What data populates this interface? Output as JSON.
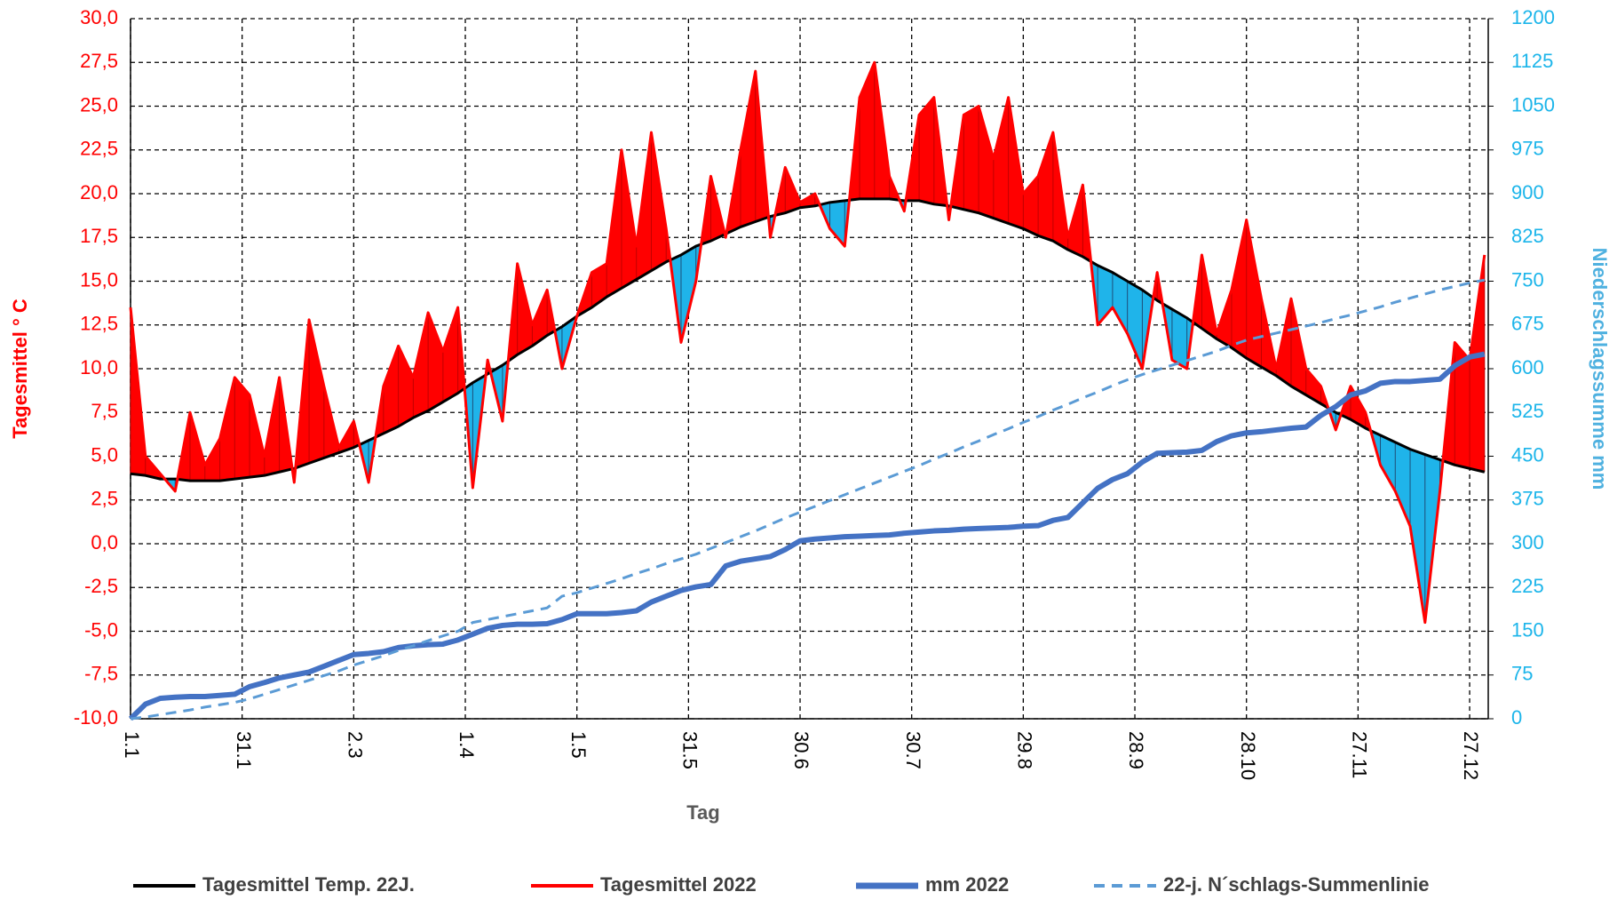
{
  "chart_data": {
    "type": "line",
    "x_label": "Tag",
    "y_label": "Tagesmittel ° C",
    "y2_label": "Niederschlagssumme mm",
    "x": [
      1,
      5,
      9,
      13,
      17,
      21,
      25,
      29,
      33,
      37,
      41,
      45,
      49,
      53,
      57,
      61,
      65,
      69,
      73,
      77,
      81,
      85,
      89,
      93,
      97,
      101,
      105,
      109,
      113,
      117,
      121,
      125,
      129,
      133,
      137,
      141,
      145,
      149,
      153,
      157,
      161,
      165,
      169,
      173,
      177,
      181,
      185,
      189,
      193,
      197,
      201,
      205,
      209,
      213,
      217,
      221,
      225,
      229,
      233,
      237,
      241,
      245,
      249,
      253,
      257,
      261,
      265,
      269,
      273,
      277,
      281,
      285,
      289,
      293,
      297,
      301,
      305,
      309,
      313,
      317,
      321,
      325,
      329,
      333,
      337,
      341,
      345,
      349,
      353,
      357,
      361,
      365
    ],
    "series": [
      {
        "name": "Tagesmittel Temp. 22J.",
        "color": "#000000",
        "values": [
          4.0,
          3.9,
          3.7,
          3.7,
          3.6,
          3.6,
          3.6,
          3.7,
          3.8,
          3.9,
          4.1,
          4.3,
          4.6,
          4.9,
          5.2,
          5.5,
          5.9,
          6.3,
          6.7,
          7.2,
          7.6,
          8.1,
          8.6,
          9.2,
          9.7,
          10.2,
          10.8,
          11.3,
          11.9,
          12.4,
          13.0,
          13.5,
          14.1,
          14.6,
          15.1,
          15.6,
          16.1,
          16.5,
          17.0,
          17.3,
          17.7,
          18.1,
          18.4,
          18.7,
          18.9,
          19.2,
          19.3,
          19.5,
          19.6,
          19.7,
          19.7,
          19.7,
          19.6,
          19.6,
          19.4,
          19.3,
          19.1,
          18.9,
          18.6,
          18.3,
          18.0,
          17.6,
          17.3,
          16.8,
          16.4,
          15.9,
          15.5,
          15.0,
          14.5,
          13.9,
          13.4,
          12.9,
          12.3,
          11.7,
          11.2,
          10.6,
          10.1,
          9.6,
          9.0,
          8.5,
          8.0,
          7.5,
          7.1,
          6.6,
          6.2,
          5.8,
          5.4,
          5.1,
          4.8,
          4.5,
          4.3,
          4.1
        ]
      },
      {
        "name": "Tagesmittel 2022",
        "color": "#ff0000",
        "values": [
          13.5,
          5.0,
          4.0,
          3.0,
          7.5,
          4.5,
          6.0,
          9.5,
          8.5,
          5.0,
          9.5,
          3.5,
          12.8,
          9.0,
          5.5,
          7.0,
          3.5,
          9.0,
          11.3,
          9.5,
          13.2,
          11.0,
          13.5,
          3.2,
          10.5,
          7.0,
          16.0,
          12.5,
          14.5,
          10.0,
          13.0,
          15.5,
          16.0,
          22.5,
          17.0,
          23.5,
          18.0,
          11.5,
          15.0,
          21.0,
          17.5,
          22.5,
          27.0,
          17.5,
          21.5,
          19.5,
          20.0,
          18.0,
          17.0,
          25.5,
          27.5,
          21.0,
          19.0,
          24.5,
          25.5,
          18.5,
          24.5,
          25.0,
          22.0,
          25.5,
          20.0,
          21.0,
          23.5,
          17.5,
          20.5,
          12.5,
          13.5,
          12.0,
          10.0,
          15.5,
          10.5,
          10.0,
          16.5,
          12.0,
          14.5,
          18.5,
          14.0,
          10.0,
          14.0,
          10.0,
          9.0,
          6.5,
          9.0,
          7.5,
          4.5,
          3.0,
          1.0,
          -4.5,
          3.0,
          11.5,
          10.5,
          16.5
        ]
      },
      {
        "name": "mm 2022",
        "color": "#4472c4",
        "axis": "y2",
        "values": [
          0,
          25,
          35,
          37,
          38,
          38,
          40,
          42,
          55,
          62,
          70,
          75,
          80,
          90,
          100,
          110,
          112,
          115,
          122,
          125,
          127,
          128,
          135,
          145,
          155,
          160,
          162,
          162,
          163,
          170,
          180,
          180,
          180,
          182,
          185,
          200,
          210,
          220,
          226,
          230,
          262,
          270,
          274,
          278,
          290,
          305,
          308,
          310,
          312,
          313,
          314,
          315,
          318,
          320,
          322,
          323,
          325,
          326,
          327,
          328,
          330,
          331,
          340,
          345,
          370,
          395,
          410,
          420,
          440,
          455,
          456,
          457,
          460,
          475,
          485,
          490,
          492,
          495,
          498,
          500,
          520,
          535,
          555,
          562,
          575,
          578,
          578,
          580,
          582,
          605,
          620,
          625
        ]
      },
      {
        "name": "22-j. N´schlags-Summenlinie",
        "color": "#5b9bd5",
        "axis": "y2",
        "dashed": true,
        "values": [
          0,
          3,
          7,
          11,
          15,
          20,
          24,
          28,
          34,
          42,
          50,
          58,
          66,
          74,
          82,
          92,
          100,
          108,
          117,
          125,
          134,
          142,
          150,
          165,
          170,
          175,
          180,
          185,
          190,
          210,
          216,
          224,
          232,
          240,
          249,
          257,
          266,
          274,
          282,
          292,
          302,
          312,
          322,
          333,
          344,
          354,
          364,
          374,
          384,
          394,
          404,
          414,
          424,
          434,
          445,
          455,
          466,
          476,
          487,
          497,
          508,
          518,
          529,
          539,
          550,
          560,
          571,
          581,
          590,
          598,
          606,
          614,
          622,
          630,
          640,
          649,
          655,
          661,
          667,
          673,
          679,
          686,
          692,
          699,
          706,
          714,
          721,
          728,
          735,
          741,
          747,
          752
        ]
      }
    ],
    "below_color": "#1fb4ea",
    "xlim": [
      1,
      366
    ],
    "xticks": [
      {
        "value": 1,
        "label": "1.1"
      },
      {
        "value": 31,
        "label": "31.1"
      },
      {
        "value": 61,
        "label": "2.3"
      },
      {
        "value": 91,
        "label": "1.4"
      },
      {
        "value": 121,
        "label": "1.5"
      },
      {
        "value": 151,
        "label": "31.5"
      },
      {
        "value": 181,
        "label": "30.6"
      },
      {
        "value": 211,
        "label": "30.7"
      },
      {
        "value": 241,
        "label": "29.8"
      },
      {
        "value": 271,
        "label": "28.9"
      },
      {
        "value": 301,
        "label": "28.10"
      },
      {
        "value": 331,
        "label": "27.11"
      },
      {
        "value": 361,
        "label": "27.12"
      }
    ],
    "ylim": [
      -10,
      30
    ],
    "yticks": [
      {
        "value": -10,
        "label": "-10,0"
      },
      {
        "value": -7.5,
        "label": "-7,5"
      },
      {
        "value": -5,
        "label": "-5,0"
      },
      {
        "value": -2.5,
        "label": "-2,5"
      },
      {
        "value": 0,
        "label": "0,0"
      },
      {
        "value": 2.5,
        "label": "2,5"
      },
      {
        "value": 5,
        "label": "5,0"
      },
      {
        "value": 7.5,
        "label": "7,5"
      },
      {
        "value": 10,
        "label": "10,0"
      },
      {
        "value": 12.5,
        "label": "12,5"
      },
      {
        "value": 15,
        "label": "15,0"
      },
      {
        "value": 17.5,
        "label": "17,5"
      },
      {
        "value": 20,
        "label": "20,0"
      },
      {
        "value": 22.5,
        "label": "22,5"
      },
      {
        "value": 25,
        "label": "25,0"
      },
      {
        "value": 27.5,
        "label": "27,5"
      },
      {
        "value": 30,
        "label": "30,0"
      }
    ],
    "y2lim": [
      0,
      1200
    ],
    "y2ticks": [
      0,
      75,
      150,
      225,
      300,
      375,
      450,
      525,
      600,
      675,
      750,
      825,
      900,
      975,
      1050,
      1125,
      1200
    ],
    "grid": true,
    "y_color": "#ff0000",
    "y2_color": "#1cb5ea"
  }
}
